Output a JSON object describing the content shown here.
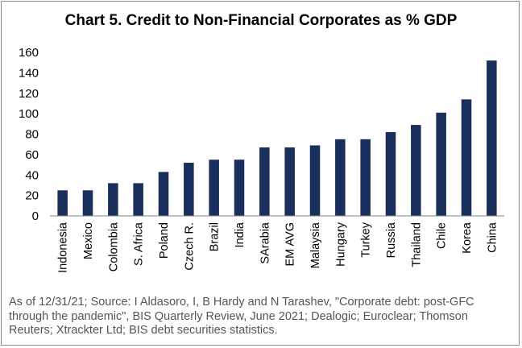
{
  "chart_data": {
    "type": "bar",
    "title": "Chart 5. Credit to Non-Financial Corporates as % GDP",
    "categories": [
      "Indonesia",
      "Mexico",
      "Colombia",
      "S. Africa",
      "Poland",
      "Czech R.",
      "Brazil",
      "India",
      "SArabia",
      "EM AVG",
      "Malaysia",
      "Hungary",
      "Turkey",
      "Russia",
      "Thailand",
      "Chile",
      "Korea",
      "China"
    ],
    "values": [
      25,
      25,
      32,
      32,
      43,
      52,
      55,
      55,
      67,
      67,
      69,
      75,
      75,
      82,
      89,
      101,
      114,
      152
    ],
    "ylim": [
      0,
      160
    ],
    "yticks": [
      0,
      20,
      40,
      60,
      80,
      100,
      120,
      140,
      160
    ],
    "xlabel": "",
    "ylabel": "",
    "grid": false,
    "bar_color": "#1b2f5c",
    "source": "As of 12/31/21; Source: I Aldasoro, I, B Hardy and N Tarashev, \"Corporate debt: post-GFC through the pandemic\", BIS Quarterly Review, June 2021; Dealogic; Euroclear; Thomson Reuters; Xtrackter Ltd; BIS debt securities statistics."
  }
}
